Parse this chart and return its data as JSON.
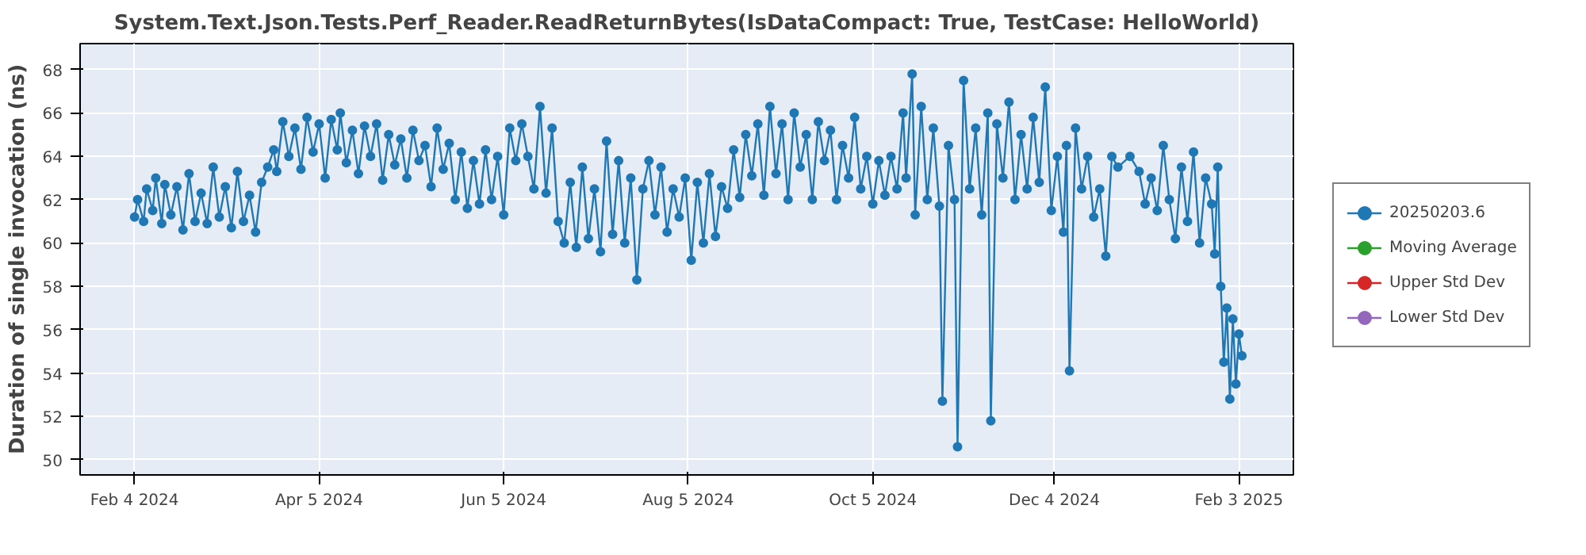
{
  "chart_data": {
    "type": "line",
    "title": "System.Text.Json.Tests.Perf_Reader.ReadReturnBytes(IsDataCompact: True, TestCase: HelloWorld)",
    "ylabel": "Duration of single invocation (ns)",
    "xlim": [
      "2024-01-17",
      "2025-02-21"
    ],
    "xticks": [
      {
        "value": "2024-02-04",
        "label": "Feb 4 2024"
      },
      {
        "value": "2024-04-05",
        "label": "Apr 5 2024"
      },
      {
        "value": "2024-06-05",
        "label": "Jun 5 2024"
      },
      {
        "value": "2024-08-05",
        "label": "Aug 5 2024"
      },
      {
        "value": "2024-10-05",
        "label": "Oct 5 2024"
      },
      {
        "value": "2024-12-04",
        "label": "Dec 4 2024"
      },
      {
        "value": "2025-02-03",
        "label": "Feb 3 2025"
      }
    ],
    "ylim": [
      49.3,
      69.2
    ],
    "yticks": [
      50,
      52,
      54,
      56,
      58,
      60,
      62,
      64,
      66,
      68
    ],
    "grid": true,
    "legend": "right",
    "marker": "circle",
    "line_style": "solid",
    "series": [
      {
        "name": "20250203.6",
        "color": "#1f77b4",
        "x": [
          "2024-02-04",
          "2024-02-05",
          "2024-02-07",
          "2024-02-08",
          "2024-02-10",
          "2024-02-11",
          "2024-02-13",
          "2024-02-14",
          "2024-02-16",
          "2024-02-18",
          "2024-02-20",
          "2024-02-22",
          "2024-02-24",
          "2024-02-26",
          "2024-02-28",
          "2024-03-01",
          "2024-03-03",
          "2024-03-05",
          "2024-03-07",
          "2024-03-09",
          "2024-03-11",
          "2024-03-13",
          "2024-03-15",
          "2024-03-17",
          "2024-03-19",
          "2024-03-21",
          "2024-03-22",
          "2024-03-24",
          "2024-03-26",
          "2024-03-28",
          "2024-03-30",
          "2024-04-01",
          "2024-04-03",
          "2024-04-05",
          "2024-04-07",
          "2024-04-09",
          "2024-04-11",
          "2024-04-12",
          "2024-04-14",
          "2024-04-16",
          "2024-04-18",
          "2024-04-20",
          "2024-04-22",
          "2024-04-24",
          "2024-04-26",
          "2024-04-28",
          "2024-04-30",
          "2024-05-02",
          "2024-05-04",
          "2024-05-06",
          "2024-05-08",
          "2024-05-10",
          "2024-05-12",
          "2024-05-14",
          "2024-05-16",
          "2024-05-18",
          "2024-05-20",
          "2024-05-22",
          "2024-05-24",
          "2024-05-26",
          "2024-05-28",
          "2024-05-30",
          "2024-06-01",
          "2024-06-03",
          "2024-06-05",
          "2024-06-07",
          "2024-06-09",
          "2024-06-11",
          "2024-06-13",
          "2024-06-15",
          "2024-06-17",
          "2024-06-19",
          "2024-06-21",
          "2024-06-23",
          "2024-06-25",
          "2024-06-27",
          "2024-06-29",
          "2024-07-01",
          "2024-07-03",
          "2024-07-05",
          "2024-07-07",
          "2024-07-09",
          "2024-07-11",
          "2024-07-13",
          "2024-07-15",
          "2024-07-17",
          "2024-07-19",
          "2024-07-21",
          "2024-07-23",
          "2024-07-25",
          "2024-07-27",
          "2024-07-29",
          "2024-07-31",
          "2024-08-02",
          "2024-08-04",
          "2024-08-06",
          "2024-08-08",
          "2024-08-10",
          "2024-08-12",
          "2024-08-14",
          "2024-08-16",
          "2024-08-18",
          "2024-08-20",
          "2024-08-22",
          "2024-08-24",
          "2024-08-26",
          "2024-08-28",
          "2024-08-30",
          "2024-09-01",
          "2024-09-03",
          "2024-09-05",
          "2024-09-07",
          "2024-09-09",
          "2024-09-11",
          "2024-09-13",
          "2024-09-15",
          "2024-09-17",
          "2024-09-19",
          "2024-09-21",
          "2024-09-23",
          "2024-09-25",
          "2024-09-27",
          "2024-09-29",
          "2024-10-01",
          "2024-10-03",
          "2024-10-05",
          "2024-10-07",
          "2024-10-09",
          "2024-10-11",
          "2024-10-13",
          "2024-10-15",
          "2024-10-16",
          "2024-10-18",
          "2024-10-19",
          "2024-10-21",
          "2024-10-23",
          "2024-10-25",
          "2024-10-27",
          "2024-10-28",
          "2024-10-30",
          "2024-11-01",
          "2024-11-02",
          "2024-11-04",
          "2024-11-06",
          "2024-11-08",
          "2024-11-10",
          "2024-11-12",
          "2024-11-13",
          "2024-11-15",
          "2024-11-17",
          "2024-11-19",
          "2024-11-21",
          "2024-11-23",
          "2024-11-25",
          "2024-11-27",
          "2024-11-29",
          "2024-12-01",
          "2024-12-03",
          "2024-12-05",
          "2024-12-07",
          "2024-12-08",
          "2024-12-09",
          "2024-12-11",
          "2024-12-13",
          "2024-12-15",
          "2024-12-17",
          "2024-12-19",
          "2024-12-21",
          "2024-12-23",
          "2024-12-25",
          "2024-12-29",
          "2025-01-01",
          "2025-01-03",
          "2025-01-05",
          "2025-01-07",
          "2025-01-09",
          "2025-01-11",
          "2025-01-13",
          "2025-01-15",
          "2025-01-17",
          "2025-01-19",
          "2025-01-21",
          "2025-01-23",
          "2025-01-25",
          "2025-01-26",
          "2025-01-27",
          "2025-01-28",
          "2025-01-29",
          "2025-01-30",
          "2025-01-31",
          "2025-02-01",
          "2025-02-02",
          "2025-02-03",
          "2025-02-04"
        ],
        "values": [
          61.2,
          62.0,
          61.0,
          62.5,
          61.5,
          63.0,
          60.9,
          62.7,
          61.3,
          62.6,
          60.6,
          63.2,
          61.0,
          62.3,
          60.9,
          63.5,
          61.2,
          62.6,
          60.7,
          63.3,
          61.0,
          62.2,
          60.5,
          62.8,
          63.5,
          64.3,
          63.3,
          65.6,
          64.0,
          65.3,
          63.4,
          65.8,
          64.2,
          65.5,
          63.0,
          65.7,
          64.3,
          66.0,
          63.7,
          65.2,
          63.2,
          65.4,
          64.0,
          65.5,
          62.9,
          65.0,
          63.6,
          64.8,
          63.0,
          65.2,
          63.8,
          64.5,
          62.6,
          65.3,
          63.4,
          64.6,
          62.0,
          64.2,
          61.6,
          63.8,
          61.8,
          64.3,
          62.0,
          64.0,
          61.3,
          65.3,
          63.8,
          65.5,
          64.0,
          62.5,
          66.3,
          62.3,
          65.3,
          61.0,
          60.0,
          62.8,
          59.8,
          63.5,
          60.2,
          62.5,
          59.6,
          64.7,
          60.4,
          63.8,
          60.0,
          63.0,
          58.3,
          62.5,
          63.8,
          61.3,
          63.5,
          60.5,
          62.5,
          61.2,
          63.0,
          59.2,
          62.8,
          60.0,
          63.2,
          60.3,
          62.6,
          61.6,
          64.3,
          62.1,
          65.0,
          63.1,
          65.5,
          62.2,
          66.3,
          63.2,
          65.5,
          62.0,
          66.0,
          63.5,
          65.0,
          62.0,
          65.6,
          63.8,
          65.2,
          62.0,
          64.5,
          63.0,
          65.8,
          62.5,
          64.0,
          61.8,
          63.8,
          62.2,
          64.0,
          62.5,
          66.0,
          63.0,
          67.8,
          61.3,
          66.3,
          62.0,
          65.3,
          61.7,
          52.7,
          64.5,
          62.0,
          50.6,
          67.5,
          62.5,
          65.3,
          61.3,
          66.0,
          51.8,
          65.5,
          63.0,
          66.5,
          62.0,
          65.0,
          62.5,
          65.8,
          62.8,
          67.2,
          61.5,
          64.0,
          60.5,
          64.5,
          54.1,
          65.3,
          62.5,
          64.0,
          61.2,
          62.5,
          59.4,
          64.0,
          63.5,
          64.0,
          63.3,
          61.8,
          63.0,
          61.5,
          64.5,
          62.0,
          60.2,
          63.5,
          61.0,
          64.2,
          60.0,
          63.0,
          61.8,
          59.5,
          63.5,
          58.0,
          54.5,
          57.0,
          52.8,
          56.5,
          53.5,
          55.8,
          54.8
        ]
      },
      {
        "name": "Moving Average",
        "color": "#2ca02c"
      },
      {
        "name": "Upper Std Dev",
        "color": "#d62728"
      },
      {
        "name": "Lower Std Dev",
        "color": "#9467bd"
      }
    ]
  }
}
